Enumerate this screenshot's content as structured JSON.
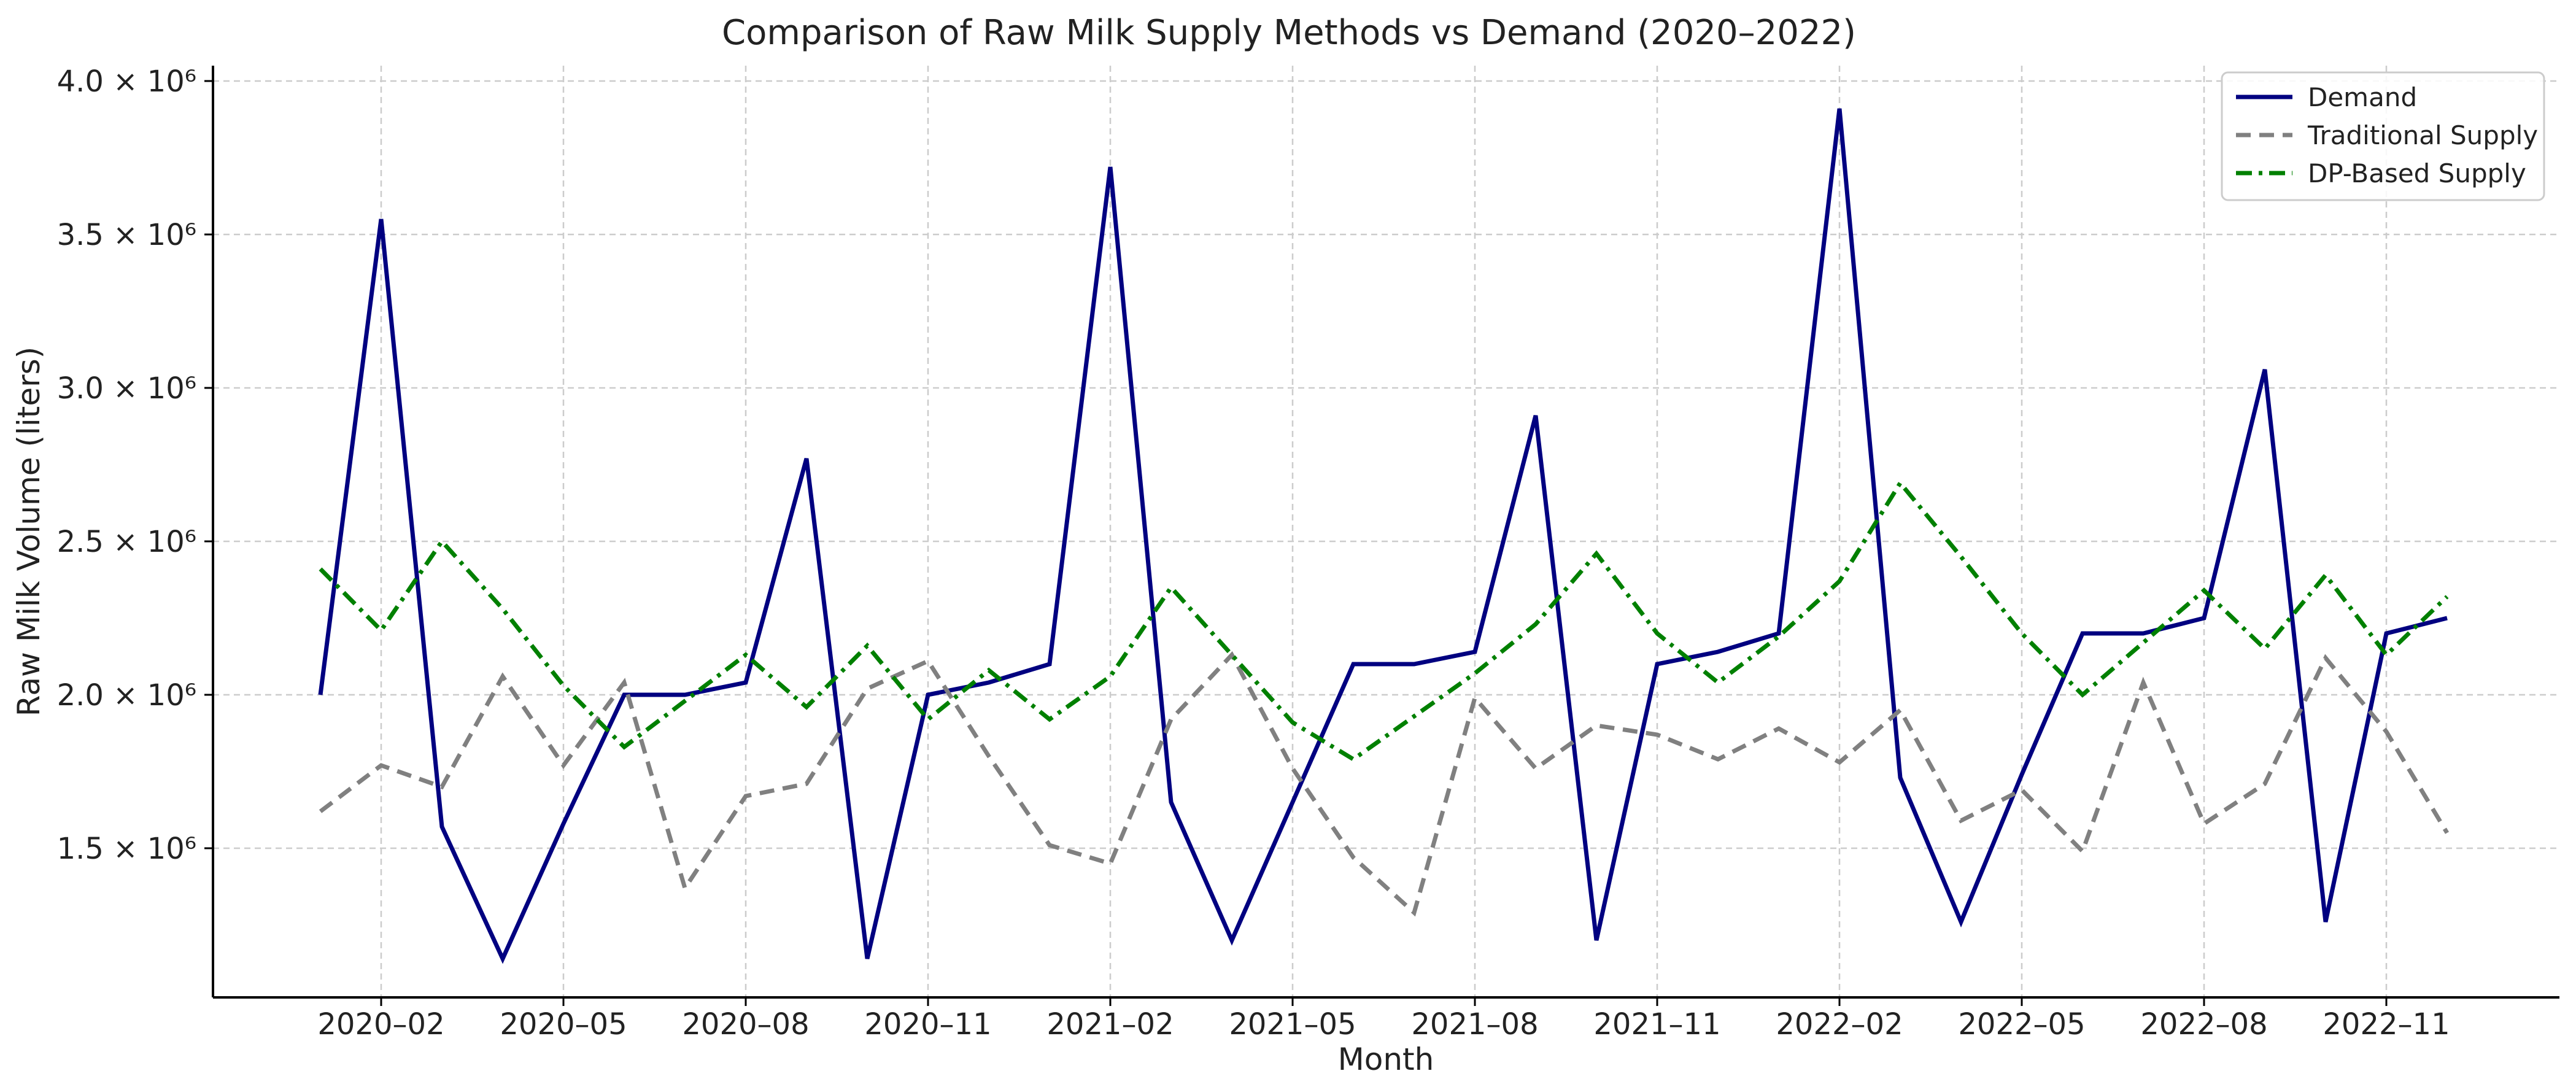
{
  "chart_data": {
    "type": "line",
    "title": "Comparison of Raw Milk Supply Methods vs Demand (2020–2022)",
    "xlabel": "Month",
    "ylabel": "Raw Milk Volume (liters)",
    "ylim": [
      1000000,
      4000000
    ],
    "grid": true,
    "legend_position": "top-right",
    "x_start": "2020-01",
    "x": [
      "2020-01",
      "2020-02",
      "2020-03",
      "2020-04",
      "2020-05",
      "2020-06",
      "2020-07",
      "2020-08",
      "2020-09",
      "2020-10",
      "2020-11",
      "2020-12",
      "2021-01",
      "2021-02",
      "2021-03",
      "2021-04",
      "2021-05",
      "2021-06",
      "2021-07",
      "2021-08",
      "2021-09",
      "2021-10",
      "2021-11",
      "2021-12",
      "2022-01",
      "2022-02",
      "2022-03",
      "2022-04",
      "2022-05",
      "2022-06",
      "2022-07",
      "2022-08",
      "2022-09",
      "2022-10",
      "2022-11",
      "2022-12"
    ],
    "x_ticks": [
      {
        "month_index": 1,
        "label": "2020–02"
      },
      {
        "month_index": 4,
        "label": "2020–05"
      },
      {
        "month_index": 7,
        "label": "2020–08"
      },
      {
        "month_index": 10,
        "label": "2020–11"
      },
      {
        "month_index": 13,
        "label": "2021–02"
      },
      {
        "month_index": 16,
        "label": "2021–05"
      },
      {
        "month_index": 19,
        "label": "2021–08"
      },
      {
        "month_index": 22,
        "label": "2021–11"
      },
      {
        "month_index": 25,
        "label": "2022–02"
      },
      {
        "month_index": 28,
        "label": "2022–05"
      },
      {
        "month_index": 31,
        "label": "2022–08"
      },
      {
        "month_index": 34,
        "label": "2022–11"
      }
    ],
    "y_ticks": [
      {
        "value": 1500000,
        "label": "1.5 × 10⁶"
      },
      {
        "value": 2000000,
        "label": "2.0 × 10⁶"
      },
      {
        "value": 2500000,
        "label": "2.5 × 10⁶"
      },
      {
        "value": 3000000,
        "label": "3.0 × 10⁶"
      },
      {
        "value": 3500000,
        "label": "3.5 × 10⁶"
      },
      {
        "value": 4000000,
        "label": "4.0 × 10⁶"
      }
    ],
    "series": [
      {
        "name": "Demand",
        "color": "#000080",
        "style": "solid",
        "values": [
          2000000,
          3550000,
          1570000,
          1140000,
          1580000,
          2000000,
          2000000,
          2040000,
          2770000,
          1140000,
          2000000,
          2040000,
          2100000,
          3720000,
          1650000,
          1200000,
          1650000,
          2100000,
          2100000,
          2140000,
          2910000,
          1200000,
          2100000,
          2140000,
          2200000,
          3910000,
          1730000,
          1260000,
          1740000,
          2200000,
          2200000,
          2250000,
          3060000,
          1260000,
          2200000,
          2250000
        ]
      },
      {
        "name": "Traditional Supply",
        "color": "#808080",
        "style": "dashed",
        "values": [
          1620000,
          1770000,
          1700000,
          2060000,
          1770000,
          2040000,
          1370000,
          1670000,
          1710000,
          2020000,
          2110000,
          1800000,
          1510000,
          1450000,
          1920000,
          2130000,
          1760000,
          1470000,
          1290000,
          1990000,
          1760000,
          1900000,
          1870000,
          1790000,
          1890000,
          1780000,
          1950000,
          1590000,
          1690000,
          1490000,
          2040000,
          1580000,
          1710000,
          2120000,
          1880000,
          1550000
        ]
      },
      {
        "name": "DP-Based Supply",
        "color": "#008000",
        "style": "dashdot",
        "values": [
          2410000,
          2210000,
          2500000,
          2280000,
          2030000,
          1830000,
          1980000,
          2130000,
          1960000,
          2160000,
          1920000,
          2080000,
          1920000,
          2060000,
          2350000,
          2130000,
          1910000,
          1790000,
          1930000,
          2070000,
          2230000,
          2460000,
          2200000,
          2040000,
          2190000,
          2370000,
          2690000,
          2450000,
          2200000,
          2000000,
          2170000,
          2340000,
          2150000,
          2390000,
          2130000,
          2320000
        ]
      }
    ]
  }
}
